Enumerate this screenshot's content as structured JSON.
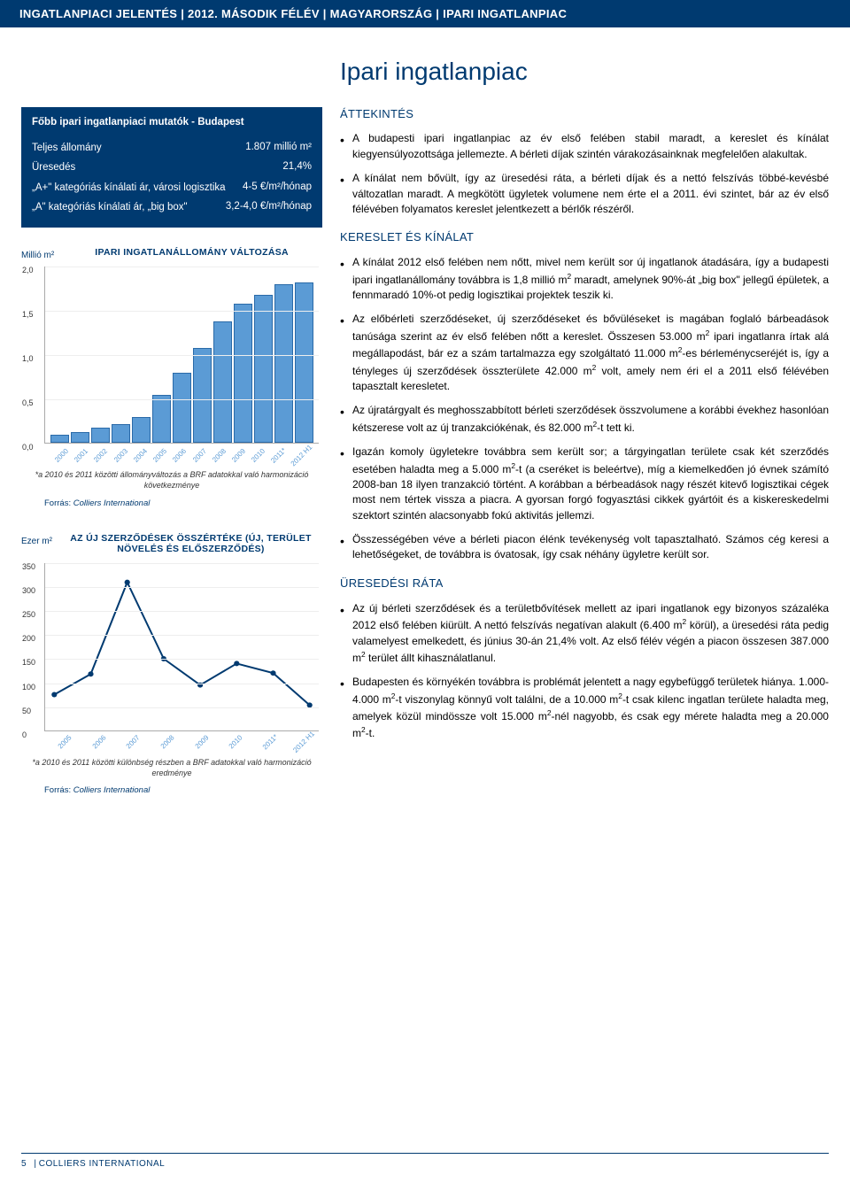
{
  "header": {
    "report_title": "INGATLANPIACI JELENTÉS",
    "period": "2012. MÁSODIK FÉLÉV",
    "country": "MAGYARORSZÁG",
    "segment": "IPARI INGATLANPIAC",
    "separator": " | "
  },
  "indicators": {
    "title": "Főbb ipari ingatlanpiaci mutatók - Budapest",
    "rows": [
      {
        "label": "Teljes állomány",
        "value": "1.807 millió m²"
      },
      {
        "label": "Üresedés",
        "value": "21,4%"
      },
      {
        "label": "„A+\" kategóriás kínálati ár, városi logisztika",
        "value": "4-5 €/m²/hónap"
      },
      {
        "label": "„A\" kategóriás kínálati ár, „big box\"",
        "value": "3,2-4,0 €/m²/hónap"
      }
    ]
  },
  "bar_chart": {
    "y_axis_label": "Millió m²",
    "title": "IPARI INGATLANÁLLOMÁNY VÁLTOZÁSA",
    "ylim": [
      0.0,
      2.0
    ],
    "ytick_step": 0.5,
    "yticks": [
      "2,0",
      "1,5",
      "1,0",
      "0,5",
      "0,0"
    ],
    "categories": [
      "2000",
      "2001",
      "2002",
      "2003",
      "2004",
      "2005",
      "2006",
      "2007",
      "2008",
      "2009",
      "2010",
      "2011*",
      "2012 H1"
    ],
    "values": [
      0.1,
      0.13,
      0.18,
      0.22,
      0.3,
      0.55,
      0.8,
      1.08,
      1.38,
      1.58,
      1.68,
      1.8,
      1.82
    ],
    "bar_color": "#5b9bd5",
    "bar_border": "#2a6aa8",
    "note": "*a 2010 és 2011 közötti állományváltozás a BRF adatokkal való harmonizáció következménye",
    "source_label": "Forrás:",
    "source_name": "Colliers International"
  },
  "line_chart": {
    "y_axis_label": "Ezer m²",
    "title": "AZ ÚJ SZERZŐDÉSEK ÖSSZÉRTÉKE (ÚJ, TERÜLET NÖVELÉS ÉS ELŐSZERZŐDÉS)",
    "ylim": [
      0,
      350
    ],
    "ytick_step": 50,
    "yticks": [
      "350",
      "300",
      "250",
      "200",
      "150",
      "100",
      "50",
      "0"
    ],
    "categories": [
      "2005",
      "2006",
      "2007",
      "2008",
      "2009",
      "2010",
      "2011*",
      "2012 H1"
    ],
    "values": [
      75,
      118,
      310,
      150,
      95,
      140,
      120,
      53
    ],
    "line_color": "#003a70",
    "marker_color": "#003a70",
    "note": "*a 2010 és 2011 közötti különbség részben a BRF adatokkal való harmonizáció eredménye",
    "source_label": "Forrás:",
    "source_name": "Colliers International"
  },
  "main": {
    "title": "Ipari ingatlanpiac",
    "sections": [
      {
        "heading": "ÁTTEKINTÉS",
        "bullets": [
          "A budapesti ipari ingatlanpiac az év első felében stabil maradt, a kereslet és kínálat kiegyensúlyozottsága jellemezte. A bérleti díjak szintén várakozásainknak megfelelően alakultak.",
          "A kínálat nem bővült, így az üresedési ráta, a bérleti díjak és a nettó felszívás többé-kevésbé változatlan maradt. A megkötött ügyletek volumene nem érte el a 2011. évi szintet, bár az év első félévében folyamatos kereslet jelentkezett a bérlők részéről."
        ]
      },
      {
        "heading": "KERESLET ÉS KÍNÁLAT",
        "bullets": [
          "A kínálat 2012 első felében nem nőtt, mivel nem került sor új ingatlanok átadására, így a budapesti ipari ingatlanállomány továbbra is 1,8 millió m² maradt, amelynek 90%-át „big box\" jellegű épületek, a fennmaradó 10%-ot pedig logisztikai projektek teszik ki.",
          "Az előbérleti szerződéseket, új szerződéseket és bővüléseket is magában foglaló bárbeadások tanúsága szerint az év első felében nőtt a kereslet. Összesen 53.000 m² ipari ingatlanra írtak alá megállapodást, bár ez a szám tartalmazza egy szolgáltató 11.000 m²-es bérleménycseréjét is, így a tényleges új szerződések összterülete 42.000 m² volt, amely nem éri el a 2011 első félévében tapasztalt keresletet.",
          "Az újratárgyalt és meghosszabbított bérleti szerződések összvolumene a korábbi évekhez hasonlóan kétszerese volt az új tranzakciókénak, és 82.000 m²-t tett ki.",
          "Igazán komoly ügyletekre továbbra sem került sor; a tárgyingatlan területe csak két szerződés esetében haladta meg a 5.000 m²-t (a cseréket is beleértve), míg a kiemelkedően jó évnek számító 2008-ban 18 ilyen tranzakció történt. A korábban a bérbeadások nagy részét kitevő logisztikai cégek most nem tértek vissza a piacra. A gyorsan forgó fogyasztási cikkek gyártóit és a kiskereskedelmi szektort szintén alacsonyabb fokú aktivitás jellemzi.",
          "Összességében véve a bérleti piacon élénk tevékenység volt tapasztalható. Számos cég keresi a lehetőségeket, de továbbra is óvatosak, így csak néhány ügyletre került sor."
        ]
      },
      {
        "heading": "ÜRESEDÉSI RÁTA",
        "bullets": [
          "Az új bérleti szerződések és a területbővítések mellett az ipari ingatlanok egy bizonyos százaléka 2012 első felében kiürült. A nettó felszívás negatívan alakult (6.400 m² körül), a üresedési ráta pedig valamelyest emelkedett, és június 30-án 21,4% volt. Az első félév végén a piacon összesen 387.000 m² terület állt kihasználatlanul.",
          "Budapesten és környékén továbbra is problémát jelentett a nagy egybefüggő területek hiánya. 1.000-4.000 m²-t viszonylag könnyű volt találni, de a 10.000 m²-t csak kilenc ingatlan területe haladta meg, amelyek közül mindössze volt 15.000 m²-nél nagyobb, és csak egy mérete haladta meg a 20.000 m²-t."
        ]
      }
    ]
  },
  "footer": {
    "page_number": "5",
    "brand": "COLLIERS INTERNATIONAL"
  },
  "colors": {
    "brand_blue": "#003a70",
    "bar_fill": "#5b9bd5",
    "bar_border": "#2a6aa8",
    "grid": "#eeeeee",
    "text": "#000000",
    "background": "#ffffff"
  }
}
